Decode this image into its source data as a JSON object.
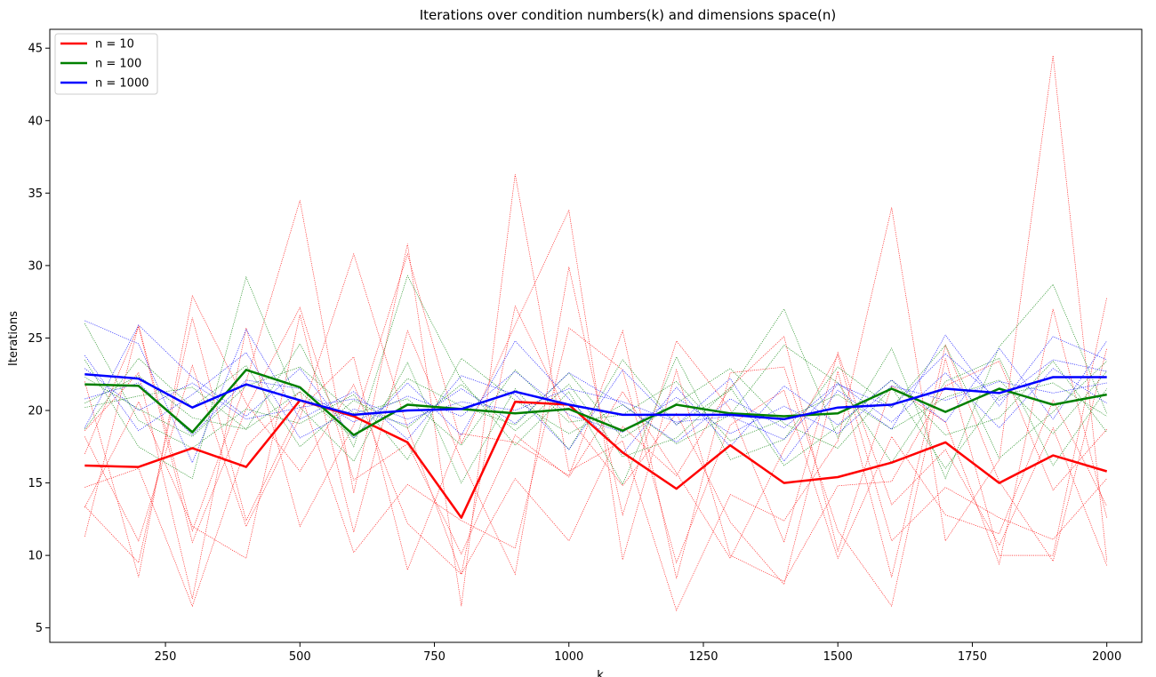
{
  "chart_data": {
    "type": "line",
    "title": "Iterations over condition numbers(k) and dimensions space(n)",
    "xlabel": "k",
    "ylabel": "Iterations",
    "xlim": [
      35,
      2065
    ],
    "ylim": [
      4.0,
      46.3
    ],
    "xticks": [
      250,
      500,
      750,
      1000,
      1250,
      1500,
      1750,
      2000
    ],
    "yticks": [
      5,
      10,
      15,
      20,
      25,
      30,
      35,
      40,
      45
    ],
    "grid": false,
    "legend_position": "top-left",
    "x": [
      100,
      200,
      300,
      400,
      500,
      600,
      700,
      800,
      900,
      1000,
      1100,
      1200,
      1300,
      1400,
      1500,
      1600,
      1700,
      1800,
      1900,
      2000
    ],
    "series": [
      {
        "name": "n = 10",
        "color": "#ff0000",
        "values": [
          16.2,
          16.1,
          17.4,
          16.1,
          20.7,
          19.6,
          17.8,
          12.6,
          20.6,
          20.4,
          17.1,
          14.6,
          17.6,
          15.0,
          15.4,
          16.4,
          17.8,
          15.0,
          16.9,
          15.8
        ],
        "trials": [
          [
            13.4,
            9.5,
            26.4,
            12.4,
            20.1,
            23.7,
            9.0,
            18.4,
            17.8,
            15.5,
            25.5,
            8.4,
            22.6,
            23.0,
            11.7,
            6.5,
            23.6,
            10.0,
            10.0,
            27.8
          ],
          [
            11.3,
            25.9,
            11.7,
            22.0,
            34.5,
            14.3,
            31.5,
            6.5,
            36.3,
            15.8,
            17.9,
            6.2,
            14.2,
            12.4,
            17.9,
            34.0,
            11.0,
            16.6,
            44.5,
            9.6
          ],
          [
            18.6,
            22.6,
            7.0,
            25.7,
            12.0,
            19.0,
            30.8,
            17.7,
            25.9,
            33.8,
            9.7,
            22.8,
            10.0,
            8.2,
            14.8,
            15.1,
            21.7,
            23.4,
            14.5,
            18.7
          ],
          [
            14.7,
            16.0,
            6.5,
            17.5,
            21.3,
            10.2,
            14.9,
            12.4,
            10.5,
            25.7,
            22.8,
            9.5,
            19.0,
            21.4,
            9.8,
            18.2,
            12.8,
            11.5,
            20.7,
            13.4
          ],
          [
            22.0,
            8.5,
            27.9,
            20.5,
            15.8,
            21.8,
            12.2,
            8.7,
            27.2,
            19.5,
            14.8,
            19.8,
            12.3,
            8.0,
            22.7,
            8.5,
            24.5,
            15.1,
            9.6,
            24.3
          ],
          [
            13.3,
            20.6,
            12.0,
            9.8,
            26.6,
            11.6,
            25.5,
            16.6,
            8.7,
            29.9,
            12.8,
            24.8,
            20.1,
            10.9,
            24.0,
            13.5,
            17.3,
            10.7,
            18.8,
            9.3
          ],
          [
            18.2,
            11.0,
            23.1,
            12.0,
            19.5,
            30.8,
            18.8,
            8.7,
            15.3,
            11.0,
            18.9,
            15.5,
            21.6,
            25.1,
            10.3,
            21.7,
            19.2,
            9.4,
            27.0,
            12.6
          ],
          [
            17.0,
            25.8,
            10.9,
            20.1,
            27.1,
            15.2,
            17.7,
            10.1,
            18.3,
            15.4,
            21.3,
            15.7,
            9.8,
            17.3,
            23.8,
            11.0,
            14.7,
            12.6,
            11.1,
            15.3
          ]
        ]
      },
      {
        "name": "n = 100",
        "color": "#008000",
        "values": [
          21.8,
          21.7,
          18.5,
          22.8,
          21.6,
          18.3,
          20.4,
          20.1,
          19.8,
          20.1,
          18.6,
          20.4,
          19.8,
          19.6,
          19.8,
          21.5,
          19.9,
          21.5,
          20.4,
          21.1
        ],
        "trials": [
          [
            23.5,
            17.5,
            15.3,
            29.2,
            20.2,
            16.5,
            23.3,
            15.0,
            21.5,
            17.3,
            23.5,
            19.0,
            21.4,
            27.0,
            18.1,
            24.3,
            15.3,
            24.4,
            28.7,
            19.8
          ],
          [
            20.2,
            21.0,
            21.6,
            18.7,
            24.6,
            17.5,
            29.3,
            22.1,
            17.6,
            21.3,
            14.9,
            23.7,
            16.6,
            18.0,
            23.0,
            20.2,
            24.5,
            16.7,
            19.9,
            23.4
          ],
          [
            26.0,
            19.3,
            17.4,
            20.1,
            19.1,
            21.1,
            16.6,
            23.6,
            20.7,
            18.4,
            20.4,
            17.7,
            19.7,
            24.5,
            21.9,
            16.4,
            22.0,
            23.6,
            16.2,
            21.5
          ],
          [
            18.7,
            23.6,
            20.2,
            23.1,
            17.5,
            20.7,
            18.8,
            21.8,
            18.6,
            21.8,
            16.8,
            18.1,
            21.6,
            16.2,
            18.9,
            22.1,
            18.3,
            19.5,
            23.4,
            18.5
          ],
          [
            22.3,
            20.1,
            18.2,
            21.7,
            23.0,
            19.8,
            20.8,
            17.6,
            22.8,
            19.2,
            19.7,
            22.0,
            17.9,
            19.4,
            21.1,
            18.7,
            20.9,
            22.1,
            18.4,
            22.7
          ],
          [
            20.5,
            22.4,
            19.5,
            18.7,
            21.3,
            18.1,
            22.2,
            20.3,
            19.0,
            22.6,
            18.1,
            20.5,
            22.9,
            19.1,
            17.4,
            21.6,
            16.0,
            21.0,
            21.9,
            19.6
          ]
        ]
      },
      {
        "name": "n = 1000",
        "color": "#0000ff",
        "values": [
          22.5,
          22.2,
          20.2,
          21.8,
          20.7,
          19.7,
          20.0,
          20.1,
          21.3,
          20.4,
          19.7,
          19.7,
          19.7,
          19.4,
          20.2,
          20.4,
          21.5,
          21.2,
          22.3,
          22.3
        ],
        "trials": [
          [
            26.2,
            24.6,
            16.4,
            25.6,
            19.4,
            21.3,
            18.0,
            22.4,
            21.1,
            17.3,
            22.8,
            19.0,
            22.2,
            16.5,
            21.4,
            18.7,
            25.2,
            20.3,
            25.1,
            23.5
          ],
          [
            18.8,
            25.9,
            22.3,
            19.6,
            22.9,
            18.1,
            21.9,
            18.3,
            24.8,
            20.8,
            17.0,
            21.6,
            17.5,
            21.7,
            19.0,
            22.1,
            19.2,
            24.3,
            19.4,
            24.8
          ],
          [
            23.8,
            18.6,
            21.1,
            24.0,
            18.1,
            20.1,
            19.0,
            21.5,
            19.1,
            22.6,
            20.4,
            17.8,
            20.8,
            18.8,
            21.9,
            19.2,
            22.6,
            18.8,
            22.9,
            20.5
          ],
          [
            20.8,
            21.9,
            18.3,
            22.1,
            21.5,
            19.2,
            21.0,
            19.6,
            22.7,
            19.7,
            18.5,
            20.9,
            18.4,
            20.3,
            18.4,
            21.7,
            20.7,
            22.0,
            21.2,
            21.9
          ],
          [
            22.9,
            20.0,
            21.9,
            19.4,
            20.2,
            20.8,
            19.4,
            20.6,
            20.0,
            21.5,
            20.6,
            19.2,
            19.6,
            18.0,
            21.8,
            20.2,
            23.9,
            20.7,
            23.5,
            22.7
          ]
        ]
      }
    ]
  }
}
